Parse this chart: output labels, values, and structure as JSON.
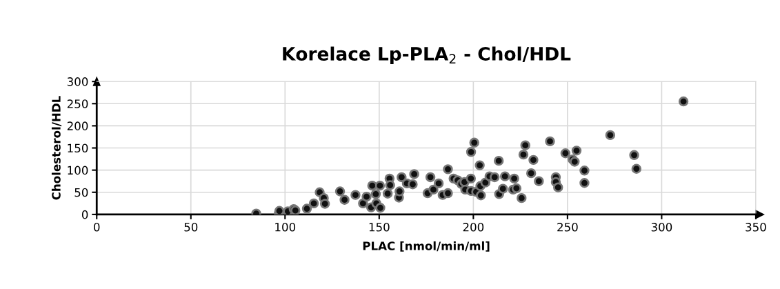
{
  "chart_data": {
    "type": "scatter",
    "title": "Korelace Lp-PLA$_{2}$ - Chol/HDL",
    "xlabel": "PLAC [nmol/min/ml]",
    "ylabel": "Cholesterol/HDL",
    "x": [
      84.7,
      96.7,
      97,
      101.5,
      104.6,
      105.5,
      111.6,
      115.3,
      118.4,
      120.6,
      121.2,
      129.2,
      131.6,
      137.4,
      141.4,
      143.3,
      145.7,
      146.3,
      148.2,
      148.5,
      150.6,
      150.4,
      154.5,
      155.5,
      155.8,
      160.5,
      160.8,
      161.9,
      164.7,
      167.8,
      168.6,
      175.7,
      177.2,
      178.8,
      181.6,
      183.7,
      186.5,
      186.5,
      189.5,
      191.7,
      193.6,
      195.3,
      195.7,
      198.7,
      198.8,
      198.8,
      200.5,
      201.5,
      203.4,
      203.7,
      204,
      206.4,
      208.6,
      211.3,
      213.5,
      213.7,
      215.7,
      216.8,
      221.1,
      221.7,
      222.9,
      225.6,
      226.6,
      227.6,
      230.7,
      231.9,
      234.8,
      240.7,
      243.8,
      243.8,
      245,
      248.9,
      252.7,
      253.8,
      254.8,
      259,
      259,
      272.7,
      285.4,
      286.6,
      311.6
    ],
    "values": [
      2,
      3,
      8,
      7,
      12,
      9,
      13,
      25,
      50,
      37,
      24,
      52,
      33,
      44,
      25,
      40,
      16,
      65,
      46,
      25,
      15,
      65,
      47,
      81,
      66,
      38,
      52,
      84,
      70,
      68,
      91,
      48,
      84,
      56,
      70,
      44,
      48,
      102,
      81,
      77,
      69,
      73,
      56,
      81,
      53,
      141,
      162,
      51,
      111,
      64,
      43,
      72,
      86,
      84,
      121,
      46,
      58,
      86,
      56,
      81,
      59,
      37,
      135,
      156,
      93,
      123,
      75,
      165,
      84,
      73,
      61,
      138,
      124,
      119,
      144,
      99,
      71,
      179,
      134,
      103,
      255
    ],
    "color": "#111111",
    "marker": "circle",
    "xlim": [
      0,
      350
    ],
    "ylim": [
      0,
      300
    ],
    "xticks": [
      0,
      50,
      100,
      150,
      200,
      250,
      300,
      350
    ],
    "yticks": [
      0,
      50,
      100,
      150,
      200,
      250,
      300
    ],
    "grid": true
  }
}
